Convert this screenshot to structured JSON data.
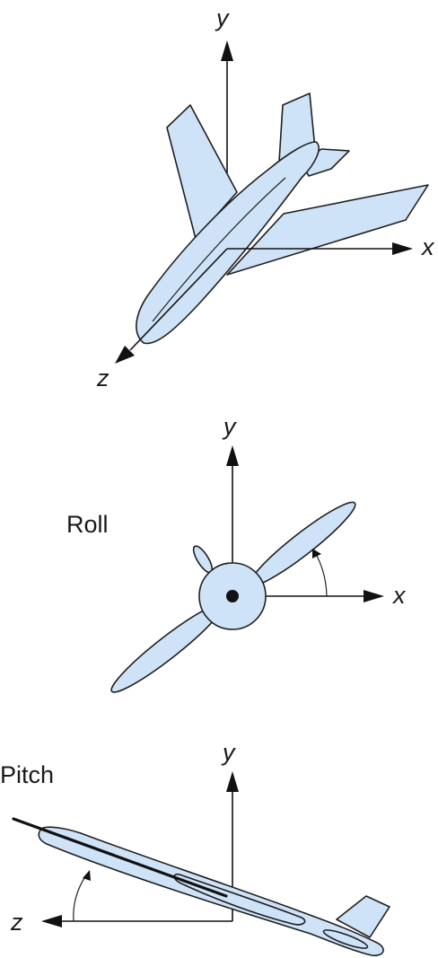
{
  "panels": {
    "view3d": {
      "axes": {
        "y": "y",
        "x": "x",
        "z": "z"
      }
    },
    "roll": {
      "title": "Roll",
      "axes": {
        "y": "y",
        "x": "x"
      }
    },
    "pitch": {
      "title": "Pitch",
      "axes": {
        "y": "y",
        "z": "z"
      }
    }
  },
  "colors": {
    "aircraft_fill": "#cfe3f8",
    "outline": "#1f1f1f"
  }
}
